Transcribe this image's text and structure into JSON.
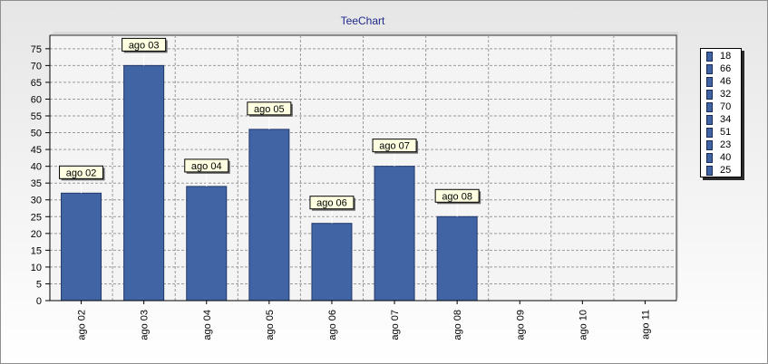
{
  "title": "TeeChart",
  "colors": {
    "bar": "#4164a4",
    "bar_stroke": "#20376a",
    "mark_bg": "#ffffe1",
    "grid": "#9a9a9a"
  },
  "chart_data": {
    "type": "bar",
    "categories": [
      "ago 02",
      "ago 03",
      "ago 04",
      "ago 05",
      "ago 06",
      "ago 07",
      "ago 08",
      "ago 09",
      "ago 10",
      "ago 11"
    ],
    "values": [
      32,
      70,
      34,
      51,
      23,
      40,
      25,
      null,
      null,
      null
    ],
    "bar_marks": [
      "ago 02",
      "ago 03",
      "ago 04",
      "ago 05",
      "ago 06",
      "ago 07",
      "ago 08"
    ],
    "ylim": [
      0,
      79
    ],
    "yticks": [
      0,
      5,
      10,
      15,
      20,
      25,
      30,
      35,
      40,
      45,
      50,
      55,
      60,
      65,
      70,
      75
    ],
    "grid": true,
    "legend_position": "right",
    "legend_entries": [
      "18",
      "66",
      "46",
      "32",
      "70",
      "34",
      "51",
      "23",
      "40",
      "25"
    ]
  }
}
